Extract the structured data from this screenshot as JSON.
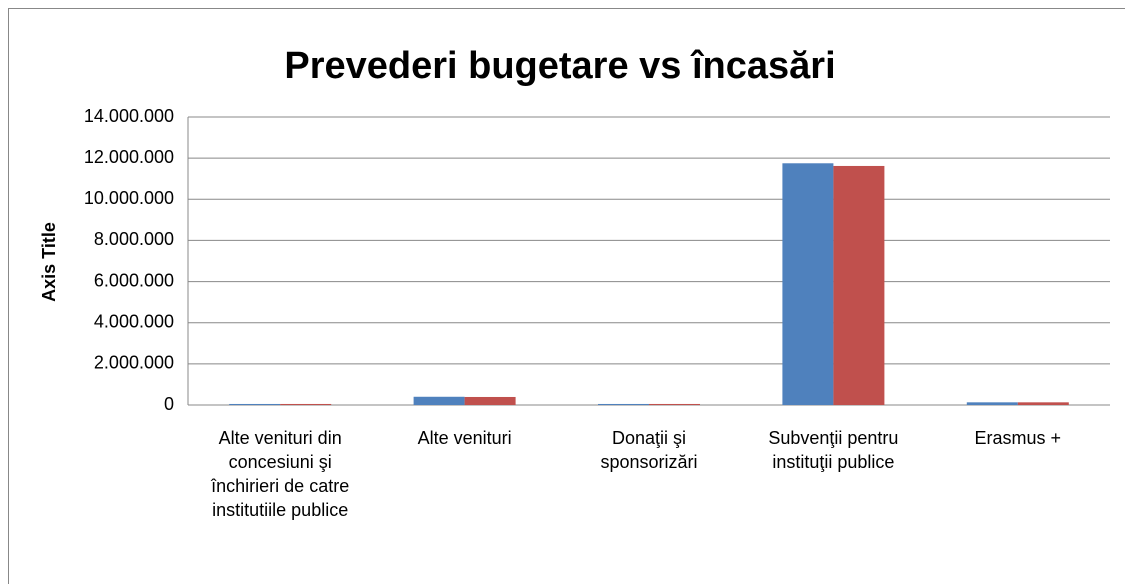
{
  "chart_data": {
    "type": "bar",
    "title": "Prevederi bugetare vs încasări",
    "y_label": "Axis Title",
    "categories": [
      "Alte venituri din concesiuni şi închirieri de catre institutiile publice",
      "Alte venituri",
      "Donaţii şi sponsorizări",
      "Subvenţii pentru instituţii publice",
      "Erasmus +"
    ],
    "series": [
      {
        "color": "#4f81bd",
        "values": [
          50000,
          400000,
          50000,
          11750000,
          130000
        ]
      },
      {
        "color": "#c0504d",
        "values": [
          50000,
          390000,
          50000,
          11620000,
          130000
        ]
      }
    ],
    "ylim": [
      0,
      14000000
    ],
    "yticks": [
      0,
      {
        "value": 2000000,
        "label": "2.000.000"
      },
      {
        "value": 4000000,
        "label": "4.000.000"
      },
      {
        "value": 6000000,
        "label": "6.000.000"
      },
      {
        "value": 8000000,
        "label": "8.000.000"
      },
      {
        "value": 10000000,
        "label": "10.000.000"
      },
      {
        "value": 12000000,
        "label": "12.000.000"
      },
      {
        "value": 14000000,
        "label": "14.000.000"
      }
    ],
    "grid": true
  }
}
